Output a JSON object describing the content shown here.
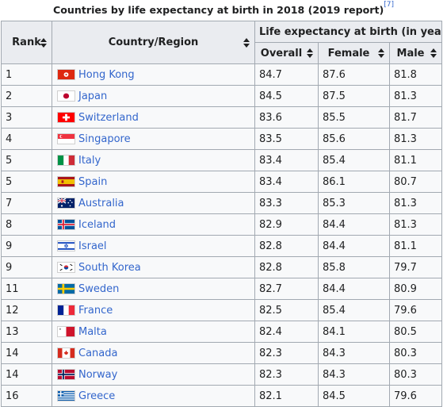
{
  "caption": {
    "title": "Countries by life expectancy at birth in 2018 (2019 report)",
    "ref": "[7]"
  },
  "headers": {
    "rank": "Rank",
    "country": "Country/Region",
    "group": "Life expectancy at birth (in years)",
    "overall": "Overall",
    "female": "Female",
    "male": "Male"
  },
  "rows": [
    {
      "rank": "1",
      "country": "Hong Kong",
      "flag": "hong-kong-flag",
      "overall": "84.7",
      "female": "87.6",
      "male": "81.8"
    },
    {
      "rank": "2",
      "country": "Japan",
      "flag": "japan-flag",
      "overall": "84.5",
      "female": "87.5",
      "male": "81.3"
    },
    {
      "rank": "3",
      "country": "Switzerland",
      "flag": "switzerland-flag",
      "overall": "83.6",
      "female": "85.5",
      "male": "81.7"
    },
    {
      "rank": "4",
      "country": "Singapore",
      "flag": "singapore-flag",
      "overall": "83.5",
      "female": "85.6",
      "male": "81.3"
    },
    {
      "rank": "5",
      "country": "Italy",
      "flag": "italy-flag",
      "overall": "83.4",
      "female": "85.4",
      "male": "81.1"
    },
    {
      "rank": "5",
      "country": "Spain",
      "flag": "spain-flag",
      "overall": "83.4",
      "female": "86.1",
      "male": "80.7"
    },
    {
      "rank": "7",
      "country": "Australia",
      "flag": "australia-flag",
      "overall": "83.3",
      "female": "85.3",
      "male": "81.3"
    },
    {
      "rank": "8",
      "country": "Iceland",
      "flag": "iceland-flag",
      "overall": "82.9",
      "female": "84.4",
      "male": "81.3"
    },
    {
      "rank": "9",
      "country": "Israel",
      "flag": "israel-flag",
      "overall": "82.8",
      "female": "84.4",
      "male": "81.1"
    },
    {
      "rank": "9",
      "country": "South Korea",
      "flag": "south-korea-flag",
      "overall": "82.8",
      "female": "85.8",
      "male": "79.7"
    },
    {
      "rank": "11",
      "country": "Sweden",
      "flag": "sweden-flag",
      "overall": "82.7",
      "female": "84.4",
      "male": "80.9"
    },
    {
      "rank": "12",
      "country": "France",
      "flag": "france-flag",
      "overall": "82.5",
      "female": "85.4",
      "male": "79.6"
    },
    {
      "rank": "13",
      "country": "Malta",
      "flag": "malta-flag",
      "overall": "82.4",
      "female": "84.1",
      "male": "80.5"
    },
    {
      "rank": "14",
      "country": "Canada",
      "flag": "canada-flag",
      "overall": "82.3",
      "female": "84.3",
      "male": "80.3"
    },
    {
      "rank": "14",
      "country": "Norway",
      "flag": "norway-flag",
      "overall": "82.3",
      "female": "84.3",
      "male": "80.3"
    },
    {
      "rank": "16",
      "country": "Greece",
      "flag": "greece-flag",
      "overall": "82.1",
      "female": "84.5",
      "male": "79.6"
    }
  ],
  "colors": {
    "link": "#3366cc",
    "header_bg": "#eaecf0",
    "cell_bg": "#f8f9fa",
    "border": "#a2a9b1"
  }
}
